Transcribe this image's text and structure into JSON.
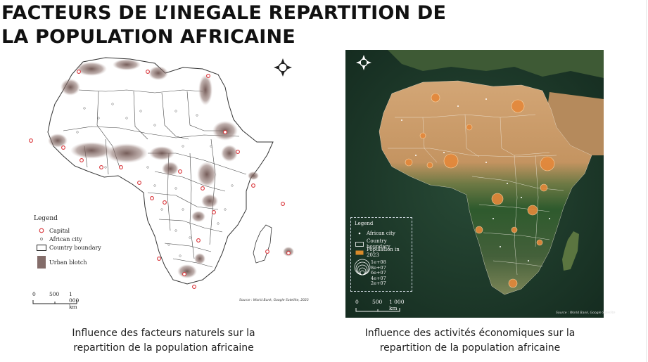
{
  "title": {
    "line1": "FACTEURS DE L’INEGALE REPARTITION DE",
    "line2": "LA POPULATION AFRICAINE"
  },
  "left_map": {
    "legend": {
      "title": "Legend",
      "capital": "Capital",
      "african_city": "African city",
      "country_boundary": "Country boundary",
      "urban_blotch": "Urban blotch"
    },
    "scale": {
      "zero": "0",
      "mid": "500",
      "end": "1 000 km"
    },
    "source": "Source : World Bank, Google Satellite, 2023",
    "colors": {
      "land": "#ffffff",
      "boundary": "#333333",
      "blotch": "#6e5450",
      "capital": "#d9353a"
    },
    "caption_line1": "Influence des facteurs naturels sur la",
    "caption_line2": "repartition de la population africaine"
  },
  "right_map": {
    "legend": {
      "title": "Legend",
      "african_city": "African city",
      "country_boundary": "Country boundary",
      "population": "Population in 2023",
      "sizes": [
        "1e+08",
        "8e+07",
        "6e+07",
        "4e+07",
        "2e+07"
      ]
    },
    "scale": {
      "zero": "0",
      "mid": "500",
      "end": "1 000 km"
    },
    "source": "Source : World Bank, Google Satellite",
    "colors": {
      "desert": "#c99a68",
      "forest": "#2f5a2e",
      "ocean": "#1d3b2b",
      "bubble": "#d98a2b"
    },
    "caption_line1": "Influence des activités économiques sur la",
    "caption_line2": "repartition de la population africaine"
  }
}
